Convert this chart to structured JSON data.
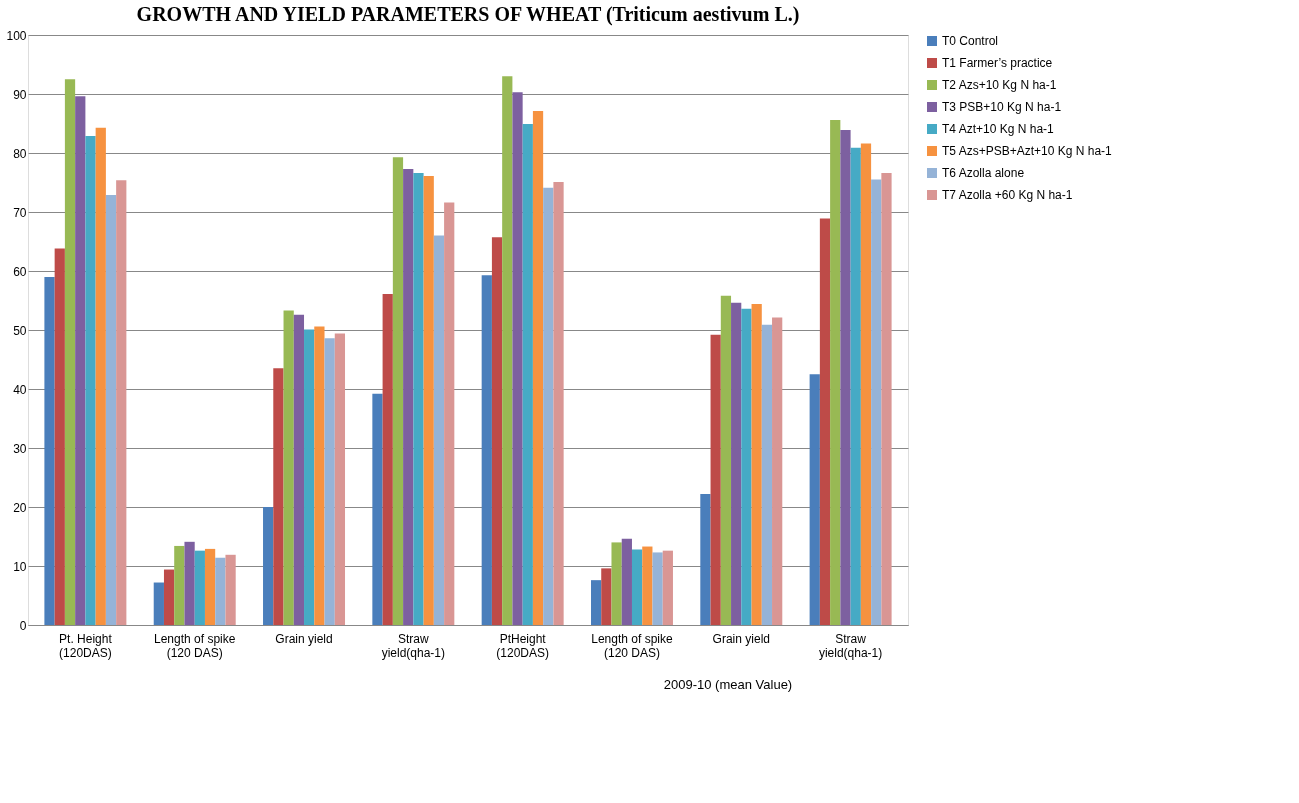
{
  "chart_data": {
    "type": "bar",
    "title": "GROWTH AND YIELD PARAMETERS OF WHEAT (Triticum aestivum L.)",
    "categories": [
      "Pt. Height\n(120DAS)",
      "Length of spike\n(120 DAS)",
      "Grain yield",
      "Straw\nyield(qha-1)",
      "PtHeight\n(120DAS)",
      "Length of spike\n(120 DAS)",
      "Grain yield",
      "Straw\nyield(qha-1)"
    ],
    "series": [
      {
        "name": "T0 Control",
        "color": "#4a7ebb",
        "values": [
          59,
          7.2,
          20,
          39.2,
          59.3,
          7.6,
          22.2,
          42.5
        ]
      },
      {
        "name": "T1 Farmer’s practice",
        "color": "#be4b48",
        "values": [
          63.8,
          9.4,
          43.5,
          56.1,
          65.7,
          9.6,
          49.2,
          68.9
        ]
      },
      {
        "name": "T2 Azs+10 Kg N ha-1",
        "color": "#98b954",
        "values": [
          92.5,
          13.4,
          53.3,
          79.3,
          93,
          14,
          55.8,
          85.6
        ]
      },
      {
        "name": "T3 PSB+10 Kg N ha-1",
        "color": "#7d60a0",
        "values": [
          89.6,
          14.1,
          52.6,
          77.3,
          90.3,
          14.6,
          54.6,
          83.9
        ]
      },
      {
        "name": "T4 Azt+10 Kg N ha-1",
        "color": "#46aac5",
        "values": [
          82.9,
          12.6,
          50.1,
          76.6,
          84.9,
          12.8,
          53.6,
          80.9
        ]
      },
      {
        "name": "T5 Azs+PSB+Azt+10 Kg N ha-1",
        "color": "#f69240",
        "values": [
          84.3,
          12.9,
          50.6,
          76.1,
          87.1,
          13.3,
          54.4,
          81.6
        ]
      },
      {
        "name": "T6 Azolla alone",
        "color": "#95b3d7",
        "values": [
          72.9,
          11.4,
          48.6,
          66,
          74.1,
          12.3,
          50.9,
          75.5
        ]
      },
      {
        "name": "T7 Azolla +60 Kg N ha-1",
        "color": "#d99694",
        "values": [
          75.4,
          11.9,
          49.4,
          71.6,
          75.1,
          12.6,
          52.1,
          76.6
        ]
      }
    ],
    "ylim": [
      0,
      100
    ],
    "yticks": [
      0,
      10,
      20,
      30,
      40,
      50,
      60,
      70,
      80,
      90,
      100
    ],
    "grid": "y",
    "legend": "right",
    "annotations": [
      "2009-10 (mean Value)"
    ]
  }
}
